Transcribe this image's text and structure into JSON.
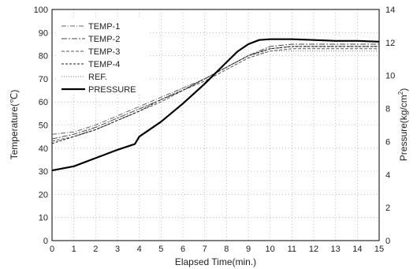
{
  "chart_data": {
    "type": "line",
    "xlabel": "Elapsed Time(min.)",
    "ylabel": "Temperature(℃)",
    "y2label_main": "Pressure(kg/cm",
    "y2label_sup": "2",
    "y2label_close": ")",
    "xlim": [
      0,
      15
    ],
    "ylim": [
      0,
      100
    ],
    "y2lim": [
      0,
      14
    ],
    "x_ticks": [
      "0",
      "1",
      "2",
      "3",
      "4",
      "5",
      "6",
      "7",
      "8",
      "9",
      "10",
      "11",
      "12",
      "13",
      "14",
      "15"
    ],
    "y_ticks": [
      "0",
      "10",
      "20",
      "30",
      "40",
      "50",
      "60",
      "70",
      "80",
      "90",
      "100"
    ],
    "y2_ticks": [
      "0",
      "2",
      "4",
      "6",
      "8",
      "10",
      "12",
      "14"
    ],
    "grid": true,
    "legend_position": "top-left",
    "series": [
      {
        "name": "TEMP-1",
        "axis": "left",
        "style": "dashdot-light",
        "color": "#666666",
        "x": [
          0,
          1,
          2,
          3,
          4,
          5,
          6,
          7,
          8,
          9,
          10,
          11,
          12,
          13,
          14,
          15
        ],
        "y": [
          46,
          47,
          50,
          54,
          58,
          62,
          66,
          70,
          75,
          80,
          83,
          84,
          84,
          84,
          84,
          84
        ]
      },
      {
        "name": "TEMP-2",
        "axis": "left",
        "style": "dashdot",
        "color": "#444444",
        "x": [
          0,
          1,
          2,
          3,
          4,
          5,
          6,
          7,
          8,
          9,
          10,
          11,
          12,
          13,
          14,
          15
        ],
        "y": [
          44,
          46,
          49,
          53,
          57,
          61,
          65,
          70,
          75,
          80,
          84,
          85,
          85,
          85,
          85,
          85
        ]
      },
      {
        "name": "TEMP-3",
        "axis": "left",
        "style": "dashed",
        "color": "#555555",
        "x": [
          0,
          1,
          2,
          3,
          4,
          5,
          6,
          7,
          8,
          9,
          10,
          11,
          12,
          13,
          14,
          15
        ],
        "y": [
          43,
          45,
          48,
          52,
          56,
          60,
          65,
          69,
          74,
          79,
          82,
          83,
          83,
          83,
          83,
          83
        ]
      },
      {
        "name": "TEMP-4",
        "axis": "left",
        "style": "dashed-dark",
        "color": "#222222",
        "x": [
          0,
          1,
          2,
          3,
          4,
          5,
          6,
          7,
          8,
          9,
          10,
          11,
          12,
          13,
          14,
          15
        ],
        "y": [
          42,
          45,
          48,
          52,
          56,
          61,
          65,
          70,
          75,
          80,
          83,
          84,
          84,
          84,
          84,
          84
        ]
      },
      {
        "name": "REF.",
        "axis": "left",
        "style": "dotted",
        "color": "#777777",
        "x": [
          0,
          1,
          2,
          3,
          4,
          5,
          6,
          7,
          8,
          9,
          10,
          11,
          12,
          13,
          14,
          15
        ],
        "y": [
          43,
          45,
          49,
          53,
          57,
          61,
          66,
          70,
          75,
          80,
          82,
          82,
          82,
          82,
          82,
          82
        ]
      },
      {
        "name": "PRESSURE",
        "axis": "right",
        "style": "solid-bold",
        "color": "#000000",
        "x": [
          0,
          1,
          2,
          3,
          3.8,
          4,
          5,
          6,
          7,
          8,
          8.5,
          9,
          9.5,
          10,
          11,
          12,
          13,
          14,
          15
        ],
        "y": [
          4.25,
          4.5,
          5.0,
          5.5,
          5.85,
          6.3,
          7.2,
          8.3,
          9.5,
          10.8,
          11.45,
          11.9,
          12.15,
          12.2,
          12.2,
          12.15,
          12.1,
          12.1,
          12.05
        ]
      }
    ]
  }
}
